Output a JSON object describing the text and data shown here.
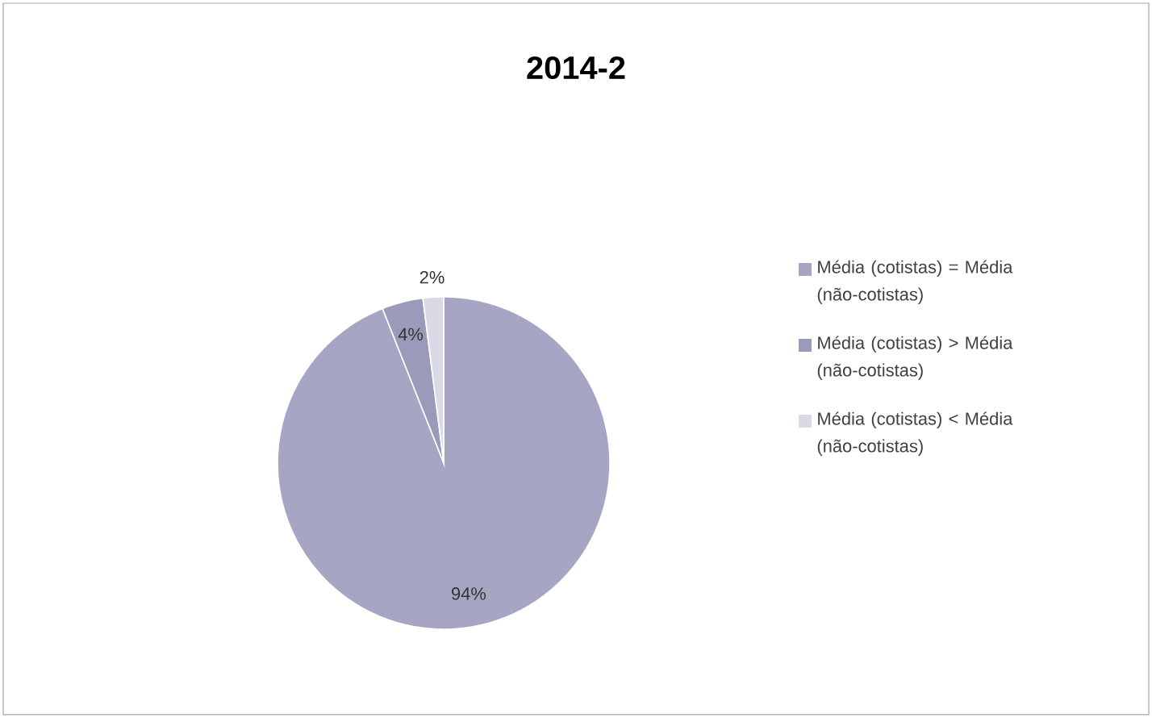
{
  "chart_data": {
    "type": "pie",
    "title": "2014-2",
    "categories": [
      "Média (cotistas) = Média (não-cotistas)",
      "Média (cotistas) > Média (não-cotistas)",
      "Média (cotistas) < Média (não-cotistas)"
    ],
    "values": [
      94,
      4,
      2
    ],
    "colors": [
      "#a6a6c4",
      "#9a9aba",
      "#dadae6"
    ],
    "value_labels": [
      "94%",
      "4%",
      "2%"
    ],
    "legend": "right"
  }
}
